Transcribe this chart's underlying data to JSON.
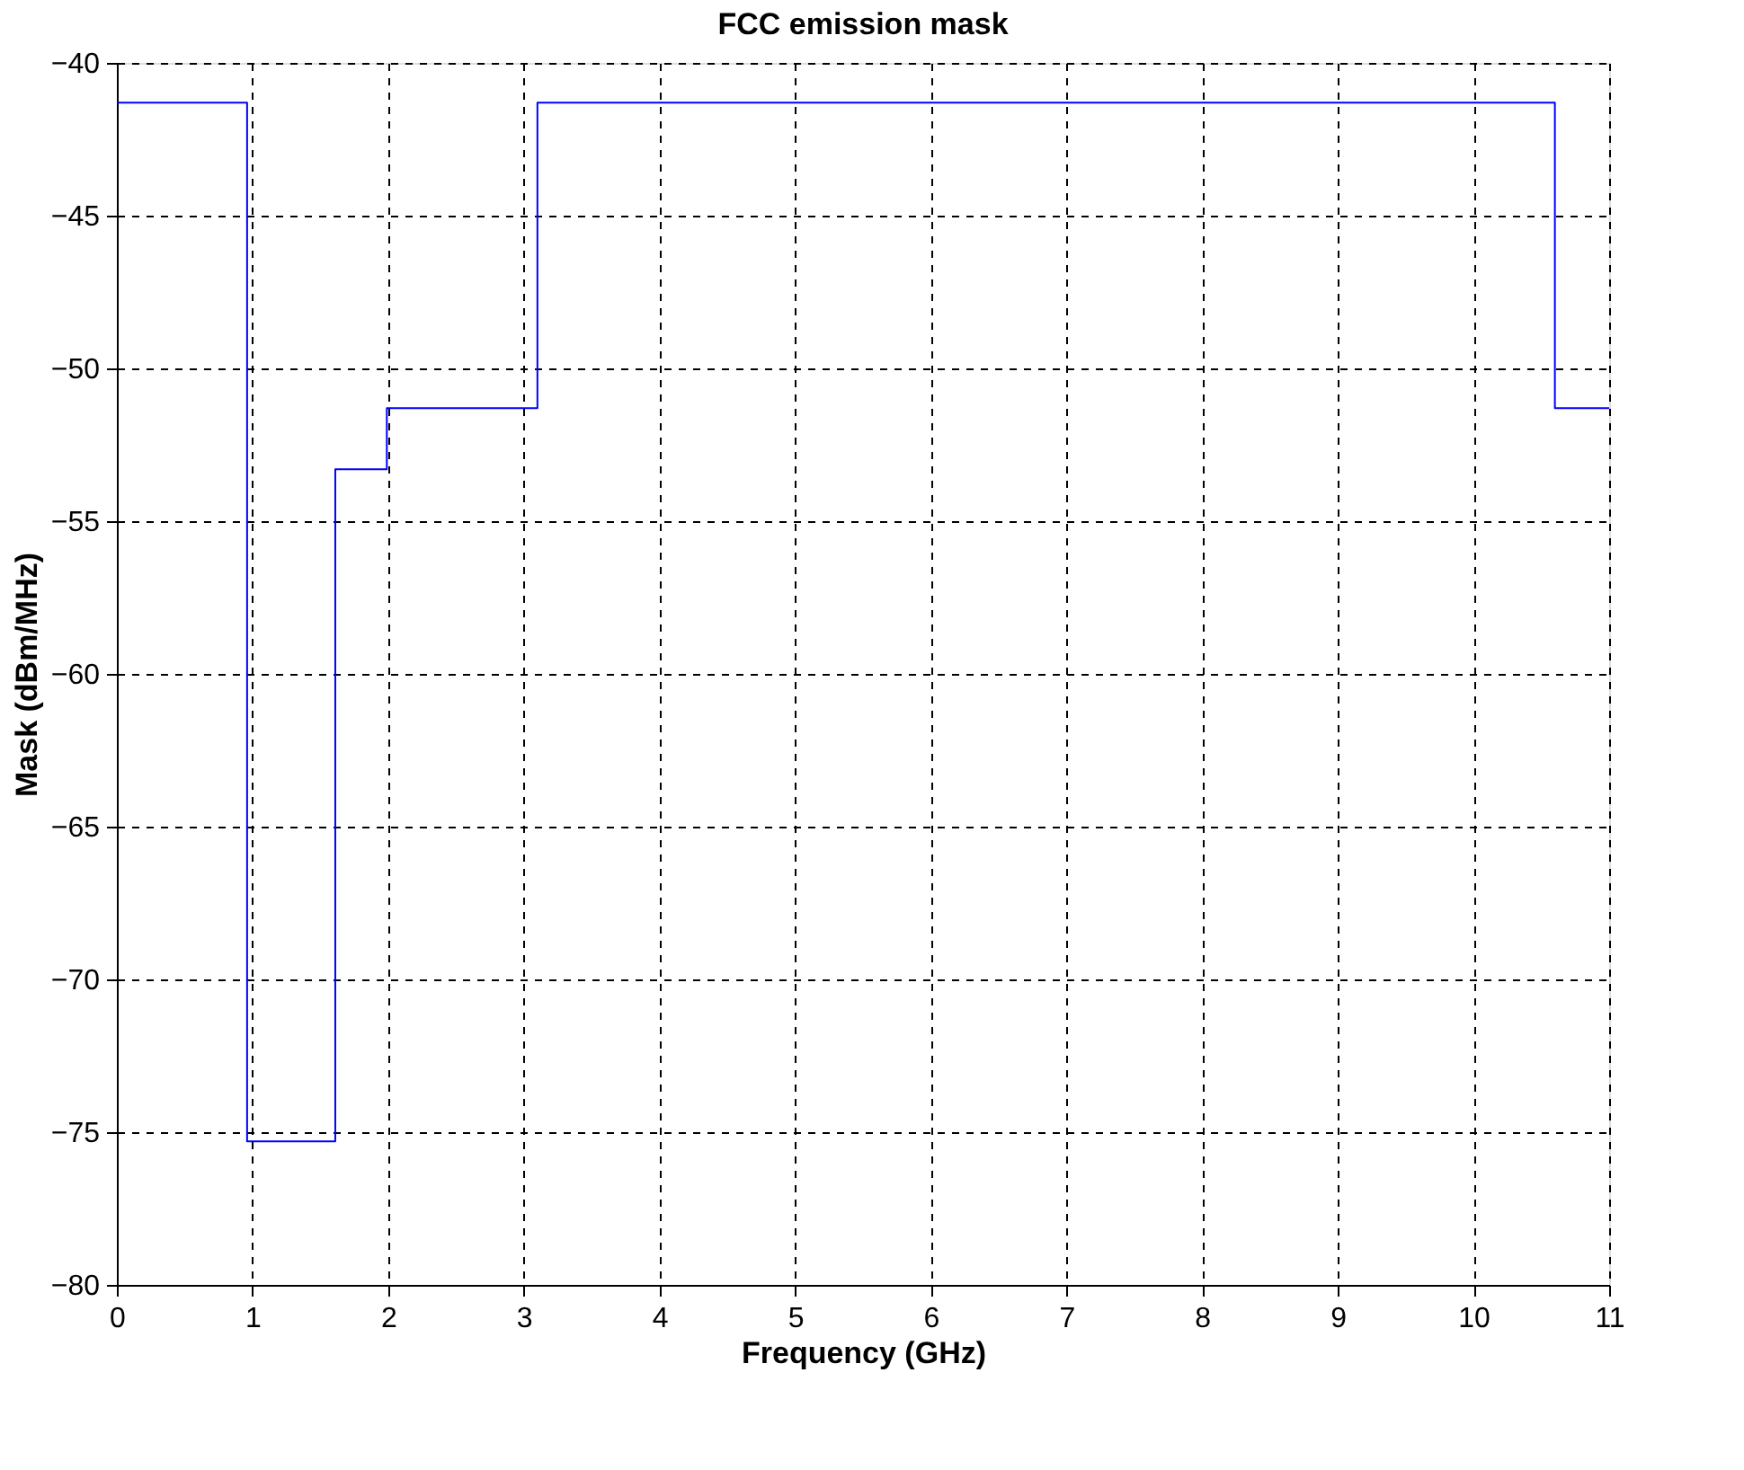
{
  "chart_data": {
    "type": "step",
    "title": "FCC emission mask",
    "xlabel": "Frequency (GHz)",
    "ylabel": "Mask (dBm/MHz)",
    "x": [
      0,
      0.96,
      1.61,
      1.99,
      3.1,
      10.6,
      11
    ],
    "series": [
      {
        "color": "#0000ff",
        "values": [
          -41.3,
          -75.3,
          -53.3,
          -51.3,
          -41.3,
          -51.3,
          -51.3
        ]
      }
    ],
    "xlim": [
      0,
      11
    ],
    "xticks": [
      0,
      1,
      2,
      3,
      4,
      5,
      6,
      7,
      8,
      9,
      10,
      11
    ],
    "ylim": [
      -80,
      -40
    ],
    "yticks": [
      -80,
      -75,
      -70,
      -65,
      -60,
      -55,
      -50,
      -45,
      -40
    ],
    "grid": true,
    "line_style": "solid",
    "marker": "none"
  }
}
